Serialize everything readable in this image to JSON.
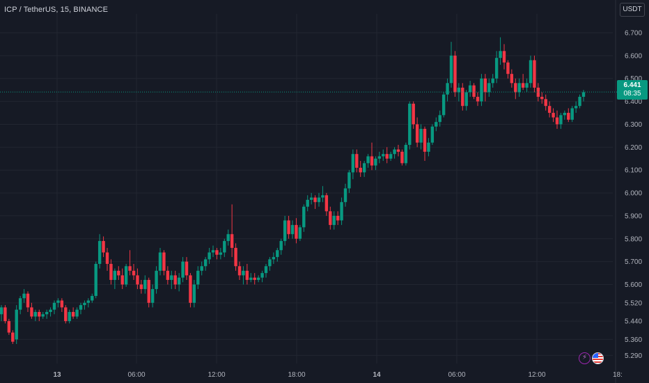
{
  "header": {
    "title": "ICP / TetherUS, 15, BINANCE",
    "currency_button": "USDT"
  },
  "price_tag": {
    "price": "6.441",
    "countdown": "08:35"
  },
  "icons": {
    "lightning": "lightning-icon",
    "flag": "us-flag-icon"
  },
  "colors": {
    "up": "#089981",
    "down": "#f23645",
    "background": "#161a25",
    "grid": "#222631",
    "axis_text": "#b2b5be",
    "last_price_line": "#089981"
  },
  "chart_data": {
    "type": "candlestick",
    "title": "ICP / TetherUS, 15, BINANCE",
    "y_ticks": [
      "6.700",
      "6.600",
      "6.500",
      "6.400",
      "6.300",
      "6.200",
      "6.100",
      "6.000",
      "5.900",
      "5.800",
      "5.700",
      "5.600",
      "5.520",
      "5.440",
      "5.360",
      "5.290"
    ],
    "x_ticks": [
      "13",
      "06:00",
      "12:00",
      "18:00",
      "14",
      "06:00",
      "12:00",
      "18:"
    ],
    "ylim": [
      5.27,
      6.76
    ],
    "last_price": 6.441,
    "grid": true,
    "candles": [
      [
        5.47,
        5.51,
        5.44,
        5.5
      ],
      [
        5.5,
        5.51,
        5.43,
        5.44
      ],
      [
        5.44,
        5.45,
        5.38,
        5.39
      ],
      [
        5.39,
        5.4,
        5.34,
        5.35
      ],
      [
        5.36,
        5.51,
        5.34,
        5.49
      ],
      [
        5.49,
        5.55,
        5.47,
        5.54
      ],
      [
        5.54,
        5.58,
        5.52,
        5.56
      ],
      [
        5.56,
        5.57,
        5.48,
        5.5
      ],
      [
        5.5,
        5.52,
        5.45,
        5.46
      ],
      [
        5.46,
        5.49,
        5.44,
        5.48
      ],
      [
        5.48,
        5.49,
        5.44,
        5.46
      ],
      [
        5.46,
        5.48,
        5.45,
        5.47
      ],
      [
        5.47,
        5.49,
        5.45,
        5.48
      ],
      [
        5.48,
        5.5,
        5.46,
        5.49
      ],
      [
        5.49,
        5.53,
        5.47,
        5.52
      ],
      [
        5.52,
        5.54,
        5.5,
        5.53
      ],
      [
        5.53,
        5.54,
        5.48,
        5.5
      ],
      [
        5.5,
        5.51,
        5.43,
        5.44
      ],
      [
        5.44,
        5.49,
        5.43,
        5.48
      ],
      [
        5.48,
        5.5,
        5.45,
        5.46
      ],
      [
        5.46,
        5.5,
        5.45,
        5.49
      ],
      [
        5.49,
        5.52,
        5.47,
        5.51
      ],
      [
        5.51,
        5.53,
        5.49,
        5.52
      ],
      [
        5.52,
        5.54,
        5.5,
        5.53
      ],
      [
        5.53,
        5.56,
        5.52,
        5.55
      ],
      [
        5.55,
        5.7,
        5.54,
        5.69
      ],
      [
        5.69,
        5.82,
        5.67,
        5.79
      ],
      [
        5.79,
        5.81,
        5.72,
        5.74
      ],
      [
        5.74,
        5.76,
        5.66,
        5.69
      ],
      [
        5.69,
        5.71,
        5.6,
        5.62
      ],
      [
        5.62,
        5.67,
        5.58,
        5.66
      ],
      [
        5.66,
        5.68,
        5.62,
        5.64
      ],
      [
        5.64,
        5.67,
        5.58,
        5.6
      ],
      [
        5.6,
        5.69,
        5.59,
        5.68
      ],
      [
        5.68,
        5.75,
        5.64,
        5.66
      ],
      [
        5.66,
        5.69,
        5.62,
        5.64
      ],
      [
        5.64,
        5.67,
        5.58,
        5.6
      ],
      [
        5.6,
        5.62,
        5.56,
        5.58
      ],
      [
        5.58,
        5.64,
        5.56,
        5.62
      ],
      [
        5.62,
        5.63,
        5.5,
        5.52
      ],
      [
        5.52,
        5.6,
        5.5,
        5.58
      ],
      [
        5.58,
        5.68,
        5.56,
        5.66
      ],
      [
        5.66,
        5.76,
        5.64,
        5.74
      ],
      [
        5.74,
        5.75,
        5.64,
        5.66
      ],
      [
        5.66,
        5.68,
        5.6,
        5.62
      ],
      [
        5.62,
        5.66,
        5.58,
        5.64
      ],
      [
        5.64,
        5.66,
        5.58,
        5.6
      ],
      [
        5.6,
        5.65,
        5.57,
        5.63
      ],
      [
        5.63,
        5.72,
        5.61,
        5.7
      ],
      [
        5.7,
        5.72,
        5.62,
        5.64
      ],
      [
        5.64,
        5.65,
        5.5,
        5.52
      ],
      [
        5.52,
        5.62,
        5.5,
        5.6
      ],
      [
        5.6,
        5.68,
        5.58,
        5.66
      ],
      [
        5.66,
        5.7,
        5.64,
        5.68
      ],
      [
        5.68,
        5.72,
        5.66,
        5.71
      ],
      [
        5.71,
        5.76,
        5.69,
        5.74
      ],
      [
        5.74,
        5.77,
        5.72,
        5.75
      ],
      [
        5.75,
        5.76,
        5.71,
        5.73
      ],
      [
        5.73,
        5.76,
        5.71,
        5.74
      ],
      [
        5.74,
        5.8,
        5.72,
        5.79
      ],
      [
        5.79,
        5.84,
        5.77,
        5.82
      ],
      [
        5.82,
        5.95,
        5.72,
        5.76
      ],
      [
        5.76,
        5.78,
        5.66,
        5.68
      ],
      [
        5.68,
        5.7,
        5.62,
        5.64
      ],
      [
        5.64,
        5.68,
        5.6,
        5.66
      ],
      [
        5.66,
        5.69,
        5.6,
        5.62
      ],
      [
        5.62,
        5.65,
        5.61,
        5.63
      ],
      [
        5.63,
        5.65,
        5.6,
        5.62
      ],
      [
        5.62,
        5.64,
        5.61,
        5.63
      ],
      [
        5.63,
        5.66,
        5.61,
        5.65
      ],
      [
        5.65,
        5.69,
        5.63,
        5.68
      ],
      [
        5.68,
        5.72,
        5.66,
        5.71
      ],
      [
        5.71,
        5.74,
        5.69,
        5.72
      ],
      [
        5.72,
        5.76,
        5.7,
        5.75
      ],
      [
        5.75,
        5.8,
        5.73,
        5.79
      ],
      [
        5.79,
        5.9,
        5.77,
        5.88
      ],
      [
        5.88,
        5.9,
        5.8,
        5.82
      ],
      [
        5.82,
        5.88,
        5.8,
        5.86
      ],
      [
        5.86,
        5.89,
        5.78,
        5.8
      ],
      [
        5.8,
        5.86,
        5.79,
        5.85
      ],
      [
        5.85,
        5.95,
        5.83,
        5.94
      ],
      [
        5.94,
        5.99,
        5.92,
        5.97
      ],
      [
        5.97,
        6.0,
        5.95,
        5.98
      ],
      [
        5.98,
        5.99,
        5.93,
        5.96
      ],
      [
        5.96,
        6.0,
        5.94,
        5.98
      ],
      [
        5.98,
        6.03,
        5.96,
        5.99
      ],
      [
        5.99,
        6.0,
        5.9,
        5.92
      ],
      [
        5.92,
        5.94,
        5.84,
        5.86
      ],
      [
        5.86,
        5.92,
        5.84,
        5.9
      ],
      [
        5.9,
        5.92,
        5.86,
        5.88
      ],
      [
        5.88,
        5.98,
        5.86,
        5.96
      ],
      [
        5.96,
        6.04,
        5.94,
        6.02
      ],
      [
        6.02,
        6.1,
        6.0,
        6.09
      ],
      [
        6.09,
        6.19,
        6.06,
        6.17
      ],
      [
        6.17,
        6.19,
        6.09,
        6.11
      ],
      [
        6.11,
        6.14,
        6.07,
        6.09
      ],
      [
        6.09,
        6.14,
        6.07,
        6.13
      ],
      [
        6.13,
        6.17,
        6.11,
        6.16
      ],
      [
        6.16,
        6.22,
        6.1,
        6.12
      ],
      [
        6.12,
        6.16,
        6.1,
        6.15
      ],
      [
        6.15,
        6.18,
        6.13,
        6.16
      ],
      [
        6.16,
        6.19,
        6.14,
        6.17
      ],
      [
        6.17,
        6.2,
        6.13,
        6.15
      ],
      [
        6.15,
        6.18,
        6.14,
        6.17
      ],
      [
        6.17,
        6.2,
        6.15,
        6.19
      ],
      [
        6.19,
        6.21,
        6.16,
        6.18
      ],
      [
        6.18,
        6.19,
        6.12,
        6.13
      ],
      [
        6.13,
        6.22,
        6.12,
        6.21
      ],
      [
        6.21,
        6.4,
        6.19,
        6.39
      ],
      [
        6.39,
        6.4,
        6.28,
        6.3
      ],
      [
        6.3,
        6.33,
        6.2,
        6.22
      ],
      [
        6.22,
        6.3,
        6.19,
        6.28
      ],
      [
        6.28,
        6.29,
        6.14,
        6.18
      ],
      [
        6.18,
        6.24,
        6.16,
        6.22
      ],
      [
        6.22,
        6.3,
        6.21,
        6.29
      ],
      [
        6.29,
        6.33,
        6.27,
        6.31
      ],
      [
        6.31,
        6.36,
        6.29,
        6.34
      ],
      [
        6.34,
        6.44,
        6.33,
        6.43
      ],
      [
        6.43,
        6.5,
        6.4,
        6.48
      ],
      [
        6.48,
        6.66,
        6.46,
        6.6
      ],
      [
        6.6,
        6.62,
        6.42,
        6.44
      ],
      [
        6.44,
        6.48,
        6.4,
        6.46
      ],
      [
        6.46,
        6.48,
        6.36,
        6.38
      ],
      [
        6.38,
        6.45,
        6.36,
        6.44
      ],
      [
        6.44,
        6.49,
        6.42,
        6.47
      ],
      [
        6.47,
        6.48,
        6.41,
        6.42
      ],
      [
        6.42,
        6.44,
        6.38,
        6.4
      ],
      [
        6.4,
        6.52,
        6.38,
        6.5
      ],
      [
        6.5,
        6.52,
        6.4,
        6.44
      ],
      [
        6.44,
        6.5,
        6.42,
        6.48
      ],
      [
        6.48,
        6.52,
        6.46,
        6.5
      ],
      [
        6.5,
        6.62,
        6.48,
        6.59
      ],
      [
        6.59,
        6.68,
        6.56,
        6.62
      ],
      [
        6.62,
        6.65,
        6.54,
        6.57
      ],
      [
        6.57,
        6.58,
        6.5,
        6.52
      ],
      [
        6.52,
        6.54,
        6.46,
        6.48
      ],
      [
        6.48,
        6.5,
        6.41,
        6.44
      ],
      [
        6.44,
        6.5,
        6.42,
        6.48
      ],
      [
        6.48,
        6.52,
        6.45,
        6.46
      ],
      [
        6.46,
        6.5,
        6.44,
        6.48
      ],
      [
        6.48,
        6.6,
        6.46,
        6.58
      ],
      [
        6.58,
        6.6,
        6.44,
        6.46
      ],
      [
        6.46,
        6.48,
        6.4,
        6.42
      ],
      [
        6.42,
        6.44,
        6.39,
        6.41
      ],
      [
        6.41,
        6.43,
        6.36,
        6.38
      ],
      [
        6.38,
        6.4,
        6.33,
        6.35
      ],
      [
        6.35,
        6.37,
        6.31,
        6.33
      ],
      [
        6.33,
        6.36,
        6.28,
        6.3
      ],
      [
        6.3,
        6.35,
        6.28,
        6.34
      ],
      [
        6.34,
        6.36,
        6.32,
        6.35
      ],
      [
        6.35,
        6.37,
        6.31,
        6.32
      ],
      [
        6.32,
        6.38,
        6.31,
        6.37
      ],
      [
        6.37,
        6.4,
        6.35,
        6.38
      ],
      [
        6.38,
        6.43,
        6.37,
        6.42
      ],
      [
        6.42,
        6.45,
        6.4,
        6.44
      ]
    ]
  }
}
